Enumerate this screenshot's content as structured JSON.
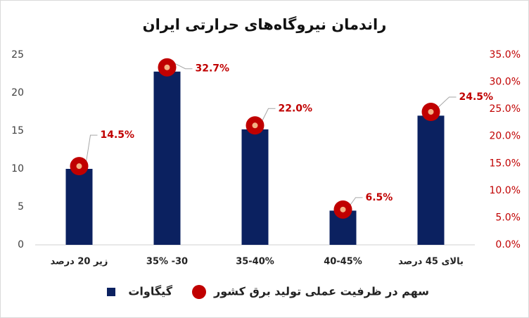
{
  "chart_data": {
    "type": "bar",
    "title": "راندمان نیروگاه‌های حرارتی ایران",
    "categories": [
      "زیر 20 درصد",
      "30- 35%",
      "35-40%",
      "40-45%",
      "بالای 45 درصد"
    ],
    "series": [
      {
        "name": "گیگاوات",
        "type": "bar",
        "color": "#0b2160",
        "values": [
          10,
          22.8,
          15.2,
          4.5,
          17
        ]
      },
      {
        "name": "سهم در ظرفیت عملی تولید برق کشور",
        "type": "dot",
        "axis": "y2",
        "color": "#c00000",
        "values": [
          14.5,
          32.7,
          22.0,
          6.5,
          24.5
        ],
        "value_labels": [
          "14.5%",
          "32.7%",
          "22.0%",
          "6.5%",
          "24.5%"
        ]
      }
    ],
    "ylim": [
      0,
      25
    ],
    "yticks": [
      0,
      5,
      10,
      15,
      20,
      25
    ],
    "y2lim": [
      0,
      35
    ],
    "y2ticks": [
      {
        "value": 0,
        "label": "0.0%"
      },
      {
        "value": 5,
        "label": "5.0%"
      },
      {
        "value": 10,
        "label": "10.0%"
      },
      {
        "value": 15,
        "label": "15.0%"
      },
      {
        "value": 20,
        "label": "20.0%"
      },
      {
        "value": 25,
        "label": "25.0%"
      },
      {
        "value": 30,
        "label": "30.0%"
      },
      {
        "value": 35,
        "label": "35.0%"
      }
    ],
    "grid": false,
    "legend": "bottom"
  }
}
